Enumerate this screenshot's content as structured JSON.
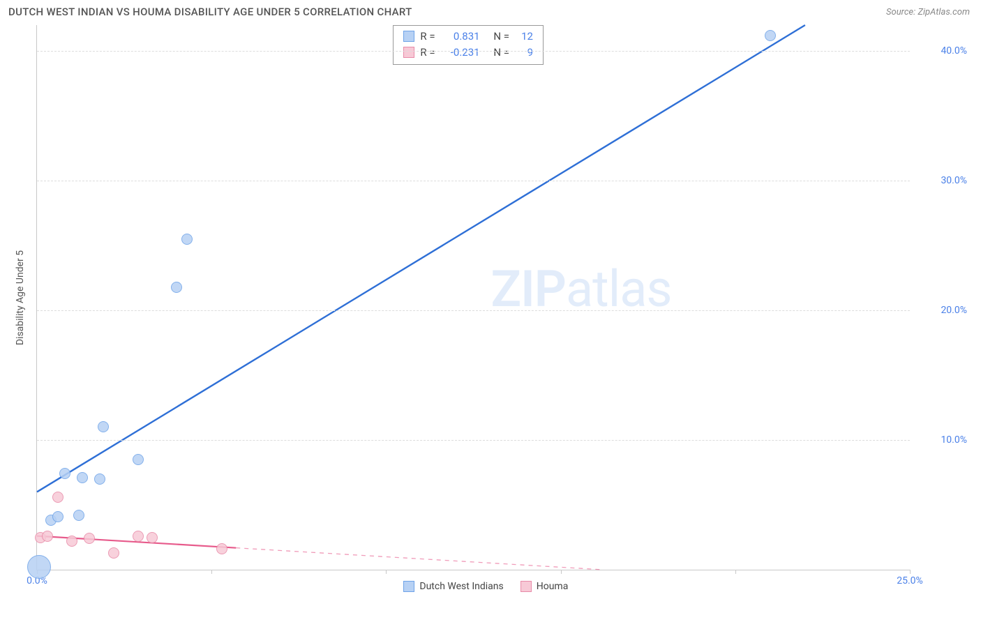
{
  "header": {
    "title": "DUTCH WEST INDIAN VS HOUMA DISABILITY AGE UNDER 5 CORRELATION CHART",
    "source_prefix": "Source: ",
    "source_name": "ZipAtlas.com"
  },
  "watermark": {
    "zip": "ZIP",
    "atlas": "atlas"
  },
  "chart": {
    "type": "scatter",
    "y_axis_label": "Disability Age Under 5",
    "xlim": [
      0,
      25
    ],
    "ylim": [
      0,
      42
    ],
    "x_ticks": [
      0,
      5,
      10,
      15,
      20,
      25
    ],
    "x_tick_labels": [
      "0.0%",
      "",
      "",
      "",
      "",
      "25.0%"
    ],
    "y_ticks": [
      10,
      20,
      30,
      40
    ],
    "y_tick_labels": [
      "10.0%",
      "20.0%",
      "30.0%",
      "40.0%"
    ],
    "grid_color": "#dcdcdc",
    "axis_color": "#c8c8c8",
    "tick_label_color": "#4a80e8",
    "background_color": "#ffffff",
    "series": [
      {
        "name": "Dutch West Indians",
        "fill_color": "#b7d1f4",
        "stroke_color": "#6ea3e8",
        "line_color": "#2e6fd6",
        "line_width": 2.4,
        "point_radius": 8,
        "R": "0.831",
        "N": "12",
        "trend": {
          "x1": 0,
          "y1": 6.0,
          "x2": 22.0,
          "y2": 42.0,
          "dashed_after": null
        },
        "points": [
          {
            "x": 0.05,
            "y": 0.2,
            "r": 17
          },
          {
            "x": 0.4,
            "y": 3.8
          },
          {
            "x": 0.6,
            "y": 4.1
          },
          {
            "x": 1.2,
            "y": 4.2
          },
          {
            "x": 0.8,
            "y": 7.4
          },
          {
            "x": 1.3,
            "y": 7.1
          },
          {
            "x": 2.9,
            "y": 8.5
          },
          {
            "x": 1.8,
            "y": 7.0
          },
          {
            "x": 1.9,
            "y": 11.0
          },
          {
            "x": 4.0,
            "y": 21.8
          },
          {
            "x": 4.3,
            "y": 25.5
          },
          {
            "x": 21.0,
            "y": 41.2
          }
        ]
      },
      {
        "name": "Houma",
        "fill_color": "#f7c9d6",
        "stroke_color": "#e88aa8",
        "line_color": "#e75a8b",
        "line_width": 2.2,
        "point_radius": 8,
        "R": "-0.231",
        "N": "9",
        "trend": {
          "x1": 0,
          "y1": 2.6,
          "x2": 16.2,
          "y2": 0.0,
          "solid_until_x": 5.7
        },
        "points": [
          {
            "x": 0.1,
            "y": 2.5
          },
          {
            "x": 0.3,
            "y": 2.6
          },
          {
            "x": 0.6,
            "y": 5.6
          },
          {
            "x": 1.0,
            "y": 2.2
          },
          {
            "x": 1.5,
            "y": 2.4
          },
          {
            "x": 2.2,
            "y": 1.3
          },
          {
            "x": 2.9,
            "y": 2.6
          },
          {
            "x": 3.3,
            "y": 2.5
          },
          {
            "x": 5.3,
            "y": 1.6
          }
        ]
      }
    ]
  },
  "legend": {
    "items": [
      {
        "label": "Dutch West Indians",
        "fill": "#b7d1f4",
        "stroke": "#6ea3e8"
      },
      {
        "label": "Houma",
        "fill": "#f7c9d6",
        "stroke": "#e88aa8"
      }
    ]
  },
  "stats_box": {
    "r_label": "R =",
    "n_label": "N ="
  }
}
